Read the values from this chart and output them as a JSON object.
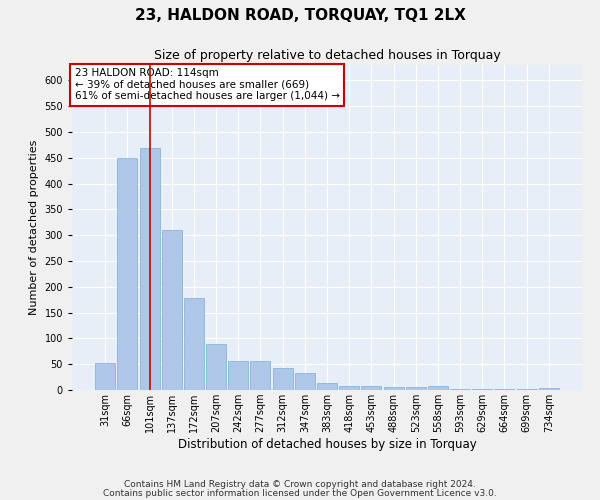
{
  "title": "23, HALDON ROAD, TORQUAY, TQ1 2LX",
  "subtitle": "Size of property relative to detached houses in Torquay",
  "xlabel": "Distribution of detached houses by size in Torquay",
  "ylabel": "Number of detached properties",
  "categories": [
    "31sqm",
    "66sqm",
    "101sqm",
    "137sqm",
    "172sqm",
    "207sqm",
    "242sqm",
    "277sqm",
    "312sqm",
    "347sqm",
    "383sqm",
    "418sqm",
    "453sqm",
    "488sqm",
    "523sqm",
    "558sqm",
    "593sqm",
    "629sqm",
    "664sqm",
    "699sqm",
    "734sqm"
  ],
  "values": [
    53,
    450,
    470,
    311,
    178,
    90,
    57,
    57,
    42,
    32,
    14,
    8,
    8,
    5,
    5,
    7,
    1,
    2,
    1,
    1,
    4
  ],
  "bar_color": "#aec6e8",
  "bar_edge_color": "#7bafd4",
  "vline_x_index": 2,
  "vline_color": "#cc0000",
  "annotation_text": "23 HALDON ROAD: 114sqm\n← 39% of detached houses are smaller (669)\n61% of semi-detached houses are larger (1,044) →",
  "annotation_box_color": "#ffffff",
  "annotation_box_edge": "#cc0000",
  "ylim": [
    0,
    630
  ],
  "yticks": [
    0,
    50,
    100,
    150,
    200,
    250,
    300,
    350,
    400,
    450,
    500,
    550,
    600
  ],
  "background_color": "#e8eef7",
  "fig_background_color": "#f0f0f0",
  "grid_color": "#ffffff",
  "footer1": "Contains HM Land Registry data © Crown copyright and database right 2024.",
  "footer2": "Contains public sector information licensed under the Open Government Licence v3.0.",
  "title_fontsize": 11,
  "subtitle_fontsize": 9,
  "annotation_fontsize": 7.5,
  "ylabel_fontsize": 8,
  "xlabel_fontsize": 8.5,
  "footer_fontsize": 6.5,
  "tick_fontsize": 7
}
